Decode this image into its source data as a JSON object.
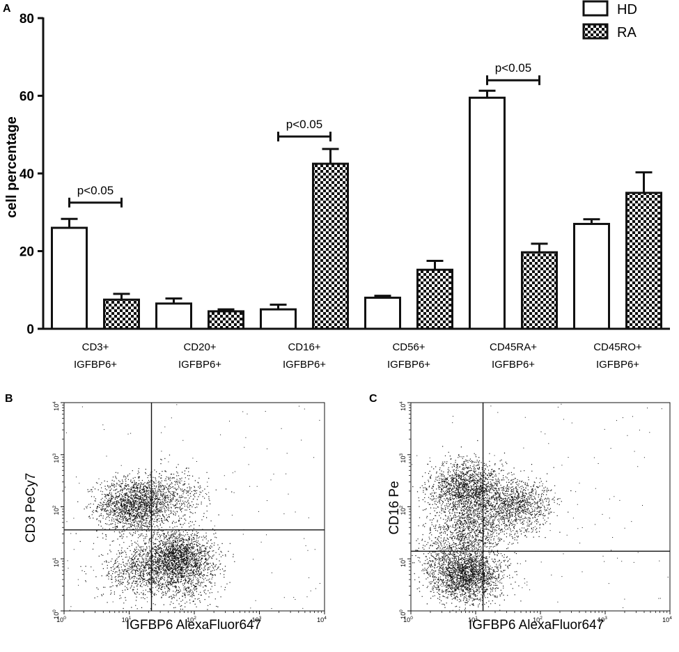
{
  "chart_data": [
    {
      "panel": "A",
      "type": "bar",
      "title": "",
      "xlabel": "",
      "ylabel": "cell percentage",
      "ylim": [
        0,
        80
      ],
      "yticks": [
        0,
        20,
        40,
        60,
        80
      ],
      "grid": false,
      "legend_position": "top-right",
      "categories": [
        {
          "line1": "CD3+",
          "line2": "IGFBP6+"
        },
        {
          "line1": "CD20+",
          "line2": "IGFBP6+"
        },
        {
          "line1": "CD16+",
          "line2": "IGFBP6+"
        },
        {
          "line1": "CD56+",
          "line2": "IGFBP6+"
        },
        {
          "line1": "CD45RA+",
          "line2": "IGFBP6+"
        },
        {
          "line1": "CD45RO+",
          "line2": "IGFBP6+"
        }
      ],
      "series": [
        {
          "name": "HD",
          "pattern": "white",
          "values": [
            26,
            6.5,
            5,
            8,
            59.5,
            27
          ],
          "errors": [
            2.3,
            1.3,
            1.2,
            0.5,
            1.8,
            1.2
          ]
        },
        {
          "name": "RA",
          "pattern": "checker",
          "values": [
            7.5,
            4.5,
            42.5,
            15.2,
            19.7,
            35
          ],
          "errors": [
            1.5,
            0.5,
            3.8,
            2.3,
            2.2,
            5.3
          ]
        }
      ],
      "annotations": [
        {
          "text": "p<0.05",
          "category_index": 0,
          "bracket_value": 32.5
        },
        {
          "text": "p<0.05",
          "category_index": 2,
          "bracket_value": 49.5
        },
        {
          "text": "p<0.05",
          "category_index": 4,
          "bracket_value": 64
        }
      ]
    },
    {
      "panel": "B",
      "type": "scatter",
      "xlabel": "IGFBP6 AlexaFluor647",
      "ylabel": "CD3 PeCy7",
      "xscale": "log",
      "yscale": "log",
      "xlim": [
        1,
        10000
      ],
      "ylim": [
        1,
        10000
      ],
      "tick_exponents": [
        0,
        1,
        2,
        3,
        4
      ],
      "gate_x": 22,
      "gate_y": 36,
      "populations": [
        {
          "x": 12,
          "y": 110,
          "n": 1700
        },
        {
          "x": 55,
          "y": 10,
          "n": 2100
        },
        {
          "x": 45,
          "y": 160,
          "n": 450
        },
        {
          "x": 14,
          "y": 6,
          "n": 650
        },
        {
          "x": 70,
          "y": 3,
          "n": 250
        }
      ]
    },
    {
      "panel": "C",
      "type": "scatter",
      "xlabel": "IGFBP6 AlexaFluor647",
      "ylabel": "CD16 Pe",
      "xscale": "log",
      "yscale": "log",
      "xlim": [
        1,
        10000
      ],
      "ylim": [
        1,
        10000
      ],
      "tick_exponents": [
        0,
        1,
        2,
        3,
        4
      ],
      "gate_x": 13,
      "gate_y": 14,
      "populations": [
        {
          "x": 7,
          "y": 230,
          "n": 1600
        },
        {
          "x": 40,
          "y": 110,
          "n": 1100
        },
        {
          "x": 7,
          "y": 5,
          "n": 2000
        },
        {
          "x": 8,
          "y": 35,
          "n": 900
        },
        {
          "x": 3,
          "y": 12,
          "n": 250
        }
      ]
    }
  ]
}
